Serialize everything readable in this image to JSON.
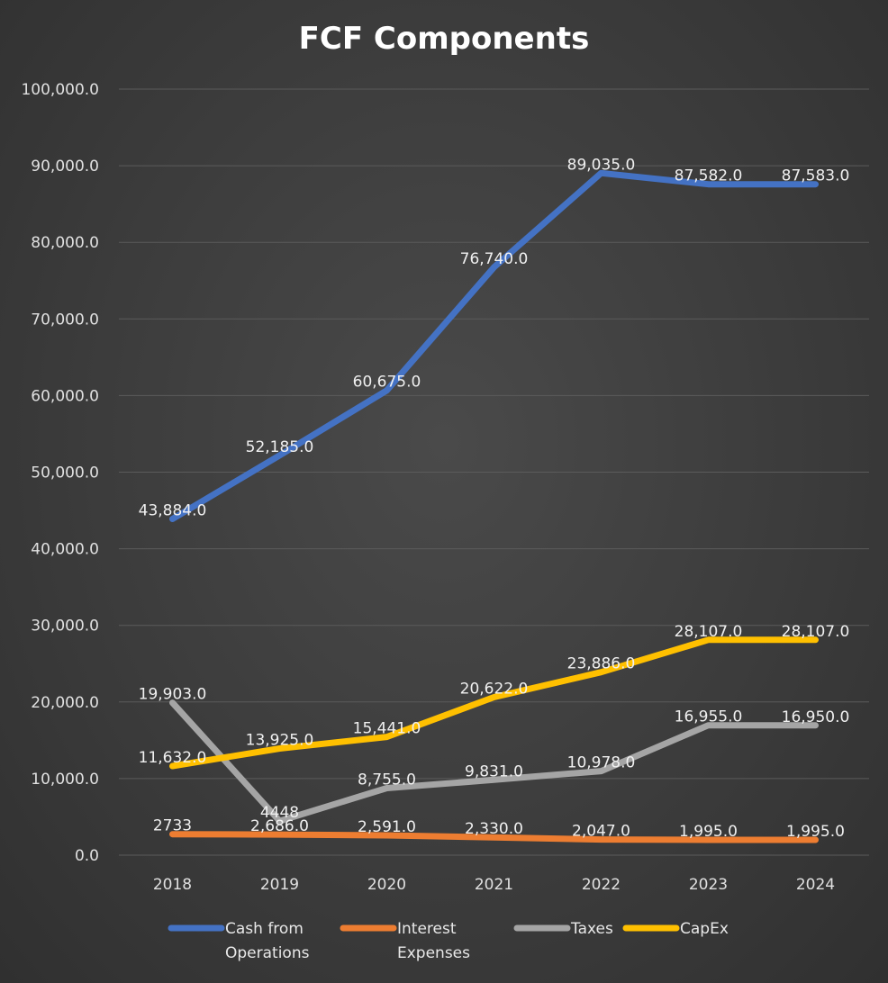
{
  "chart_data": {
    "type": "line",
    "title": "FCF Components",
    "xlabel": "",
    "ylabel": "",
    "ylim": [
      0,
      100000
    ],
    "yticks": [
      "100,000.0",
      "90,000.0",
      "80,000.0",
      "70,000.0",
      "60,000.0",
      "50,000.0",
      "40,000.0",
      "30,000.0",
      "20,000.0",
      "10,000.0",
      "0.0"
    ],
    "categories": [
      "2018",
      "2019",
      "2020",
      "2021",
      "2022",
      "2023",
      "2024"
    ],
    "grid": true,
    "legend_position": "bottom",
    "series": [
      {
        "name": "Cash from Operations",
        "legend_lines": [
          "Cash from",
          "Operations"
        ],
        "color": "#4472C4",
        "values": [
          43884,
          52185,
          60675,
          76740,
          89035,
          87582,
          87583
        ],
        "labels": [
          "43,884.0",
          "52,185.0",
          "60,675.0",
          "76,740.0",
          "89,035.0",
          "87,582.0",
          "87,583.0"
        ]
      },
      {
        "name": "Interest Expenses",
        "legend_lines": [
          "Interest",
          "Expenses"
        ],
        "color": "#ED7D31",
        "values": [
          2733,
          2686,
          2591,
          2330,
          2047,
          1995,
          1995
        ],
        "labels": [
          "2733",
          "2,686.0",
          "2,591.0",
          "2,330.0",
          "2,047.0",
          "1,995.0",
          "1,995.0"
        ]
      },
      {
        "name": "Taxes",
        "legend_lines": [
          "Taxes"
        ],
        "color": "#A5A5A5",
        "values": [
          19903,
          4448,
          8755,
          9831,
          10978,
          16955,
          16950
        ],
        "labels": [
          "19,903.0",
          "4448",
          "8,755.0",
          "9,831.0",
          "10,978.0",
          "16,955.0",
          "16,950.0"
        ]
      },
      {
        "name": "CapEx",
        "legend_lines": [
          "CapEx"
        ],
        "color": "#FFC000",
        "values": [
          11632,
          13925,
          15441,
          20622,
          23886,
          28107,
          28107
        ],
        "labels": [
          "11,632.0",
          "13,925.0",
          "15,441.0",
          "20,622.0",
          "23,886.0",
          "28,107.0",
          "28,107.0"
        ]
      }
    ]
  }
}
